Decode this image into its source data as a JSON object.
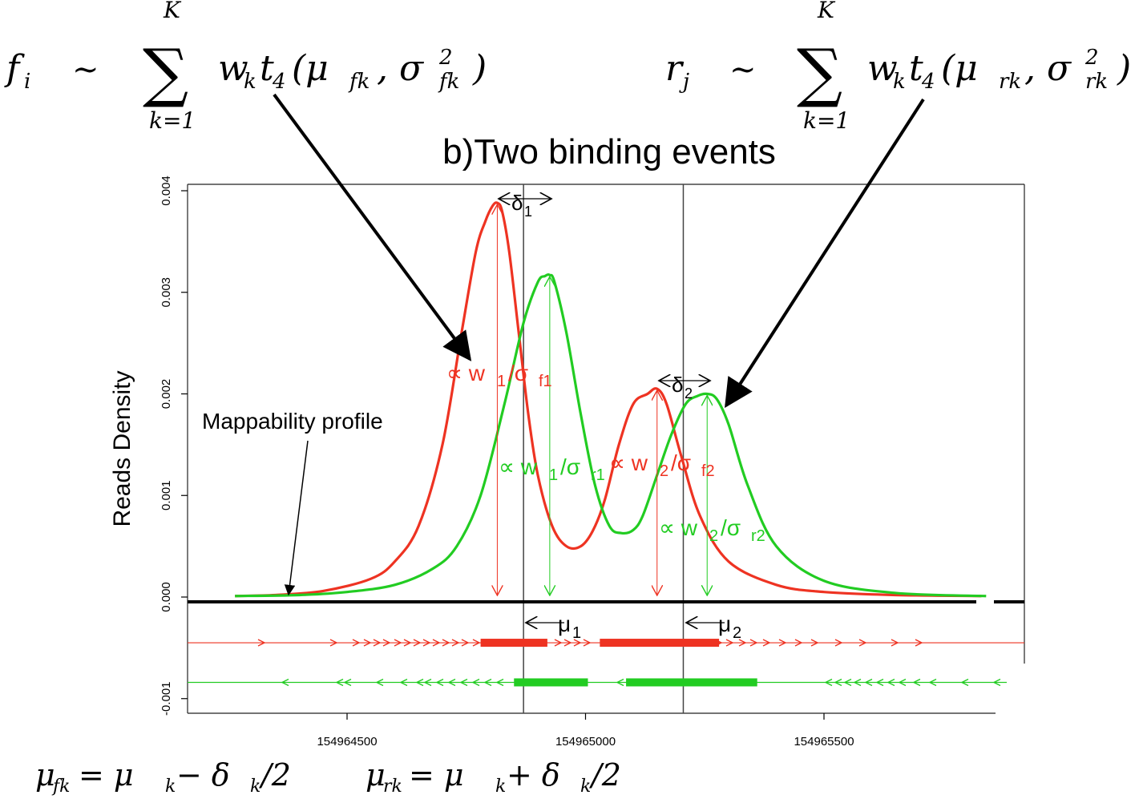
{
  "formulas": {
    "forward": {
      "lhs": "f",
      "lhs_sub": "i",
      "sim": "∼",
      "sum": "∑",
      "sum_top": "K",
      "sum_bottom": "k=1",
      "w": "w",
      "w_sub": "k",
      "t": "t",
      "t_sub": "4",
      "args_open": "(μ",
      "mu_sub": "fk",
      "comma": ", σ",
      "sigma_sup": "2",
      "sigma_sub": "fk",
      "args_close": ")"
    },
    "reverse": {
      "lhs": "r",
      "lhs_sub": "j",
      "sim": "∼",
      "sum": "∑",
      "sum_top": "K",
      "sum_bottom": "k=1",
      "w": "w",
      "w_sub": "k",
      "t": "t",
      "t_sub": "4",
      "args_open": "(μ",
      "mu_sub": "rk",
      "comma": ", σ",
      "sigma_sup": "2",
      "sigma_sub": "rk",
      "args_close": ")"
    },
    "mu_fk": {
      "mu": "μ",
      "sub": "fk",
      "eq": " = μ",
      "k": "k",
      "op": " − δ",
      "k2": "k",
      "div": "/2"
    },
    "mu_rk": {
      "mu": "μ",
      "sub": "rk",
      "eq": " = μ",
      "k": "k",
      "op": " + δ",
      "k2": "k",
      "div": "/2"
    }
  },
  "annotations": {
    "mappability": "Mappability profile",
    "delta1": "δ",
    "delta1_sub": "1",
    "delta2": "δ",
    "delta2_sub": "2",
    "mu1": "μ",
    "mu1_sub": "1",
    "mu2": "μ",
    "mu2_sub": "2",
    "w1f": "∝ w",
    "w1f_sub": "1",
    "w1f_div": "/σ",
    "w1f_div_sub": "f1",
    "w1r": "∝ w",
    "w1r_sub": "1",
    "w1r_div": "/σ",
    "w1r_div_sub": "r1",
    "w2f": "∝ w",
    "w2f_sub": "2",
    "w2f_div": "/σ",
    "w2f_div_sub": "f2",
    "w2r": "∝ w",
    "w2r_sub": "2",
    "w2r_div": "/σ",
    "w2r_div_sub": "r2"
  },
  "chart_data": {
    "type": "line",
    "title": "b)Two binding events",
    "ylabel": "Reads Density",
    "xlabel": "",
    "xlim": [
      154964200,
      154965850
    ],
    "ylim": [
      -0.0011,
      0.004
    ],
    "x_ticks": [
      "154964500",
      "154965000",
      "154965500"
    ],
    "x_tick_values": [
      154964500,
      154965000,
      154965500
    ],
    "y_ticks": [
      "0.000",
      "0.001",
      "0.002",
      "0.003",
      "0.004"
    ],
    "y_tick_values": [
      0,
      0.001,
      0.002,
      0.003,
      0.004
    ],
    "colors": {
      "forward": "#ee3322",
      "reverse": "#22cc22",
      "axis": "#000000"
    },
    "vlines": {
      "mu1": 154964870,
      "mu2": 154965205
    },
    "peaks": [
      {
        "name": "forward peak 1",
        "x": 154964815,
        "y": 0.00388
      },
      {
        "name": "reverse peak 1",
        "x": 154964925,
        "y": 0.00317
      },
      {
        "name": "forward peak 2",
        "x": 154965150,
        "y": 0.00205
      },
      {
        "name": "reverse peak 2",
        "x": 154965255,
        "y": 0.002
      }
    ],
    "series": [
      {
        "color": "#ee3322",
        "x": [
          154964265,
          154964350,
          154964450,
          154964550,
          154964600,
          154964650,
          154964700,
          154964740,
          154964770,
          154964790,
          154964805,
          154964815,
          154964825,
          154964840,
          154964860,
          154964880,
          154964900,
          154964930,
          154964960,
          154964990,
          154965015,
          154965040,
          154965070,
          154965100,
          154965130,
          154965150,
          154965170,
          154965200,
          154965240,
          154965300,
          154965400,
          154965500,
          154965650,
          154965830
        ],
        "y": [
          1e-05,
          2e-05,
          6e-05,
          0.00018,
          0.00035,
          0.0007,
          0.0015,
          0.0026,
          0.0034,
          0.0037,
          0.00385,
          0.00388,
          0.0038,
          0.0034,
          0.0026,
          0.0018,
          0.0012,
          0.0007,
          0.0005,
          0.0005,
          0.00065,
          0.00095,
          0.0015,
          0.0019,
          0.002,
          0.00205,
          0.0019,
          0.0014,
          0.0008,
          0.00035,
          0.00012,
          5e-05,
          2e-05,
          1e-05
        ]
      },
      {
        "color": "#22cc22",
        "x": [
          154964265,
          154964400,
          154964500,
          154964600,
          154964680,
          154964730,
          154964780,
          154964830,
          154964870,
          154964900,
          154964915,
          154964925,
          154964935,
          154964960,
          154964990,
          154965020,
          154965050,
          154965075,
          154965100,
          154965120,
          154965150,
          154965180,
          154965210,
          154965235,
          154965255,
          154965275,
          154965300,
          154965340,
          154965400,
          154965500,
          154965650,
          154965840
        ],
        "y": [
          1e-05,
          2e-05,
          5e-05,
          0.00012,
          0.00028,
          0.0005,
          0.001,
          0.0019,
          0.0027,
          0.0031,
          0.00316,
          0.00317,
          0.0031,
          0.0026,
          0.0018,
          0.0011,
          0.0007,
          0.00063,
          0.00066,
          0.0008,
          0.0012,
          0.0016,
          0.0019,
          0.00198,
          0.002,
          0.00195,
          0.0017,
          0.0011,
          0.0005,
          0.00016,
          4e-05,
          1e-05
        ]
      }
    ],
    "strand_reads": {
      "forward": {
        "y": -0.00045,
        "x_range": [
          154964200,
          154965850
        ],
        "dense_ranges": [
          [
            154964780,
            154964920
          ],
          [
            154965030,
            154965280
          ]
        ]
      },
      "reverse": {
        "y": -0.00084,
        "x_range": [
          154964200,
          154965850
        ],
        "dense_ranges": [
          [
            154964850,
            154965005
          ],
          [
            154965085,
            154965360
          ]
        ]
      }
    },
    "grid": false
  }
}
